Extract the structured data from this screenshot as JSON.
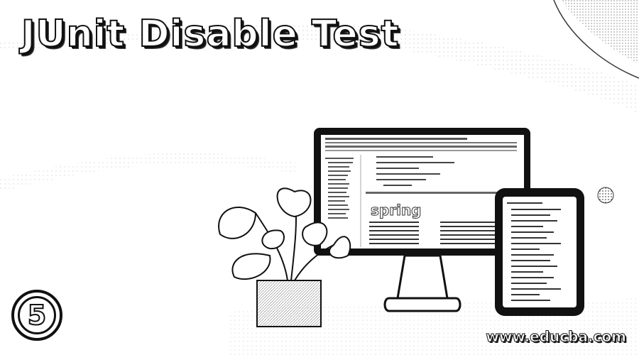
{
  "title": "JUnit Disable Test",
  "badge": {
    "number": "5"
  },
  "watermark": "www.educba.com",
  "screen_logo": "spring"
}
